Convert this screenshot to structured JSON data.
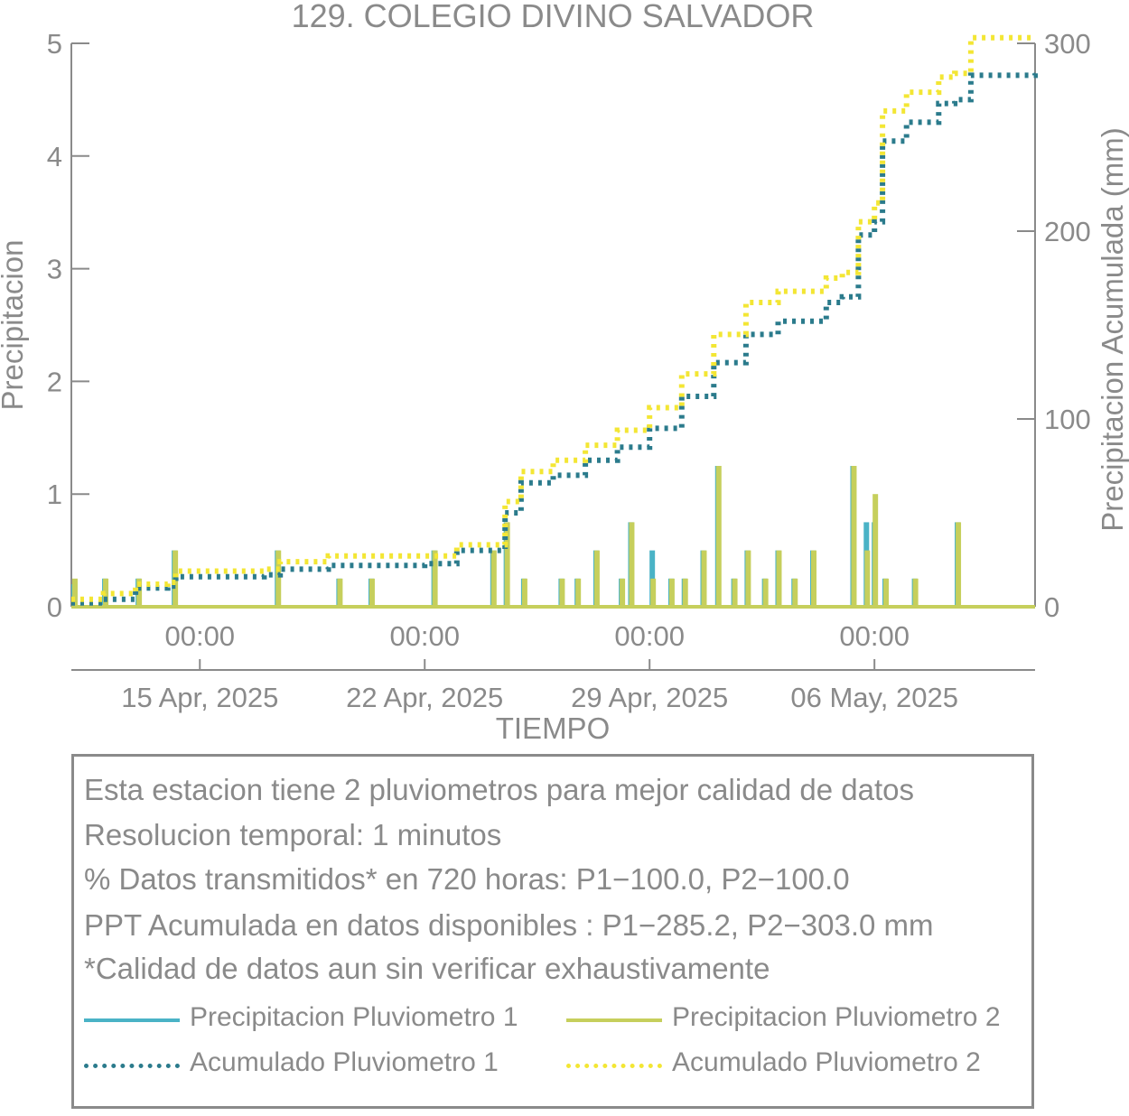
{
  "colors": {
    "text": "#8a8a8a",
    "p1": "#4ab3c6",
    "p2": "#c6cf5c",
    "acc1": "#2b7b8c",
    "acc2": "#f3e634"
  },
  "chart_data": {
    "type": "bar+line",
    "title": "129. COLEGIO DIVINO SALVADOR",
    "xlabel": "TIEMPO",
    "ylabel": "Precipitacion",
    "ylabel_right": "Precipitacion Acumulada (mm)",
    "xlim_days": [
      "2025-04-11",
      "2025-05-11"
    ],
    "ylim": [
      0,
      5
    ],
    "yticks": [
      "0",
      "1",
      "2",
      "3",
      "4",
      "5"
    ],
    "ylim_right": [
      0,
      300
    ],
    "yticks_right": [
      "0",
      "100",
      "200",
      "300"
    ],
    "xticks_time": [
      "00:00",
      "00:00",
      "00:00",
      "00:00"
    ],
    "xticks_date": [
      "15 Apr, 2025",
      "22 Apr, 2025",
      "29 Apr, 2025",
      "06 May, 2025"
    ],
    "xtick_dates_iso": [
      "2025-04-15",
      "2025-04-22",
      "2025-04-29",
      "2025-05-06"
    ],
    "bars": {
      "p1": [
        [
          "2025-04-11T02:00",
          0.2
        ],
        [
          "2025-04-12T01:00",
          0.25
        ],
        [
          "2025-04-13T02:00",
          0.25
        ],
        [
          "2025-04-14T05:00",
          0.5
        ],
        [
          "2025-04-17T10:00",
          0.5
        ],
        [
          "2025-04-19T08:00",
          0.25
        ],
        [
          "2025-04-20T08:00",
          0.25
        ],
        [
          "2025-04-22T07:00",
          0.5
        ],
        [
          "2025-04-24T03:00",
          0.5
        ],
        [
          "2025-04-24T13:00",
          0.75
        ],
        [
          "2025-04-25T02:00",
          0.25
        ],
        [
          "2025-04-26T06:00",
          0.25
        ],
        [
          "2025-04-26T18:00",
          0.25
        ],
        [
          "2025-04-27T08:00",
          0.5
        ],
        [
          "2025-04-28T03:00",
          0.25
        ],
        [
          "2025-04-28T10:00",
          0.75
        ],
        [
          "2025-04-29T02:00",
          0.5
        ],
        [
          "2025-04-29T16:00",
          0.25
        ],
        [
          "2025-04-30T02:00",
          0.25
        ],
        [
          "2025-04-30T16:00",
          0.5
        ],
        [
          "2025-05-01T03:00",
          1.25
        ],
        [
          "2025-05-01T15:00",
          0.25
        ],
        [
          "2025-05-02T01:00",
          0.5
        ],
        [
          "2025-05-02T14:00",
          0.25
        ],
        [
          "2025-05-03T00:00",
          0.5
        ],
        [
          "2025-05-03T12:00",
          0.25
        ],
        [
          "2025-05-04T02:00",
          0.5
        ],
        [
          "2025-05-05T08:00",
          1.25
        ],
        [
          "2025-05-05T18:00",
          0.75
        ],
        [
          "2025-05-06T00:00",
          0.75
        ],
        [
          "2025-05-06T08:00",
          0.25
        ],
        [
          "2025-05-07T06:00",
          0.25
        ],
        [
          "2025-05-08T14:00",
          0.75
        ]
      ],
      "p2": [
        [
          "2025-04-11T02:00",
          0.25
        ],
        [
          "2025-04-12T01:00",
          0.25
        ],
        [
          "2025-04-13T02:00",
          0.25
        ],
        [
          "2025-04-14T05:00",
          0.5
        ],
        [
          "2025-04-17T10:00",
          0.5
        ],
        [
          "2025-04-19T08:00",
          0.25
        ],
        [
          "2025-04-20T08:00",
          0.25
        ],
        [
          "2025-04-22T07:00",
          0.5
        ],
        [
          "2025-04-24T03:00",
          0.5
        ],
        [
          "2025-04-24T13:00",
          0.75
        ],
        [
          "2025-04-25T02:00",
          0.25
        ],
        [
          "2025-04-26T06:00",
          0.25
        ],
        [
          "2025-04-26T18:00",
          0.25
        ],
        [
          "2025-04-27T08:00",
          0.5
        ],
        [
          "2025-04-28T03:00",
          0.25
        ],
        [
          "2025-04-28T10:00",
          0.75
        ],
        [
          "2025-04-29T02:00",
          0.25
        ],
        [
          "2025-04-29T16:00",
          0.25
        ],
        [
          "2025-04-30T02:00",
          0.25
        ],
        [
          "2025-04-30T16:00",
          0.5
        ],
        [
          "2025-05-01T03:00",
          1.25
        ],
        [
          "2025-05-01T15:00",
          0.25
        ],
        [
          "2025-05-02T01:00",
          0.5
        ],
        [
          "2025-05-02T14:00",
          0.25
        ],
        [
          "2025-05-03T00:00",
          0.5
        ],
        [
          "2025-05-03T12:00",
          0.25
        ],
        [
          "2025-05-04T02:00",
          0.5
        ],
        [
          "2025-05-05T08:00",
          1.25
        ],
        [
          "2025-05-05T18:00",
          0.5
        ],
        [
          "2025-05-06T00:00",
          1.0
        ],
        [
          "2025-05-06T08:00",
          0.25
        ],
        [
          "2025-05-07T06:00",
          0.25
        ],
        [
          "2025-05-08T14:00",
          0.75
        ]
      ]
    },
    "series": [
      {
        "name": "Acumulado Pluviometro 1",
        "x": [
          "2025-04-11T00:00",
          "2025-04-12T00:00",
          "2025-04-13T00:00",
          "2025-04-14T00:00",
          "2025-04-14T06:00",
          "2025-04-17T00:00",
          "2025-04-17T12:00",
          "2025-04-19T00:00",
          "2025-04-22T00:00",
          "2025-04-23T00:00",
          "2025-04-24T00:00",
          "2025-04-24T12:00",
          "2025-04-25T00:00",
          "2025-04-26T00:00",
          "2025-04-27T00:00",
          "2025-04-28T00:00",
          "2025-04-29T00:00",
          "2025-04-30T00:00",
          "2025-05-01T00:00",
          "2025-05-02T00:00",
          "2025-05-03T00:00",
          "2025-05-04T12:00",
          "2025-05-05T00:00",
          "2025-05-05T12:00",
          "2025-05-06T00:00",
          "2025-05-06T06:00",
          "2025-05-07T00:00",
          "2025-05-08T00:00",
          "2025-05-08T12:00",
          "2025-05-09T00:00",
          "2025-05-11T00:00"
        ],
        "values": [
          2,
          4,
          10,
          11,
          16,
          17,
          20,
          22,
          23,
          30,
          30,
          50,
          66,
          70,
          78,
          85,
          95,
          112,
          130,
          145,
          152,
          162,
          165,
          198,
          205,
          248,
          258,
          268,
          270,
          283,
          284
        ]
      },
      {
        "name": "Acumulado Pluviometro 2",
        "x": [
          "2025-04-11T00:00",
          "2025-04-12T00:00",
          "2025-04-13T00:00",
          "2025-04-14T00:00",
          "2025-04-14T06:00",
          "2025-04-17T00:00",
          "2025-04-17T12:00",
          "2025-04-19T00:00",
          "2025-04-22T00:00",
          "2025-04-23T00:00",
          "2025-04-24T00:00",
          "2025-04-24T12:00",
          "2025-04-25T00:00",
          "2025-04-26T00:00",
          "2025-04-27T00:00",
          "2025-04-28T00:00",
          "2025-04-29T00:00",
          "2025-04-30T00:00",
          "2025-05-01T00:00",
          "2025-05-02T00:00",
          "2025-05-03T00:00",
          "2025-05-04T12:00",
          "2025-05-05T00:00",
          "2025-05-05T12:00",
          "2025-05-06T00:00",
          "2025-05-06T06:00",
          "2025-05-07T00:00",
          "2025-05-08T00:00",
          "2025-05-08T12:00",
          "2025-05-09T00:00",
          "2025-05-11T00:00"
        ],
        "values": [
          4,
          7,
          12,
          13,
          19,
          20,
          24,
          27,
          27,
          33,
          33,
          56,
          72,
          78,
          86,
          94,
          106,
          124,
          145,
          162,
          168,
          175,
          178,
          205,
          215,
          264,
          274,
          282,
          284,
          303,
          303
        ]
      }
    ]
  },
  "info": {
    "line1": "Esta estacion tiene 2 pluviometros para mejor calidad de datos",
    "line2": "Resolucion temporal: 1 minutos",
    "line3": "% Datos transmitidos* en 720 horas: P1−100.0, P2−100.0",
    "line4": "PPT Acumulada en datos disponibles : P1−285.2, P2−303.0 mm",
    "line5": "*Calidad de datos aun sin verificar exhaustivamente"
  },
  "legend": {
    "p1": "Precipitacion Pluviometro 1",
    "p2": "Precipitacion Pluviometro 2",
    "acc1": "Acumulado Pluviometro 1",
    "acc2": "Acumulado Pluviometro 2"
  }
}
